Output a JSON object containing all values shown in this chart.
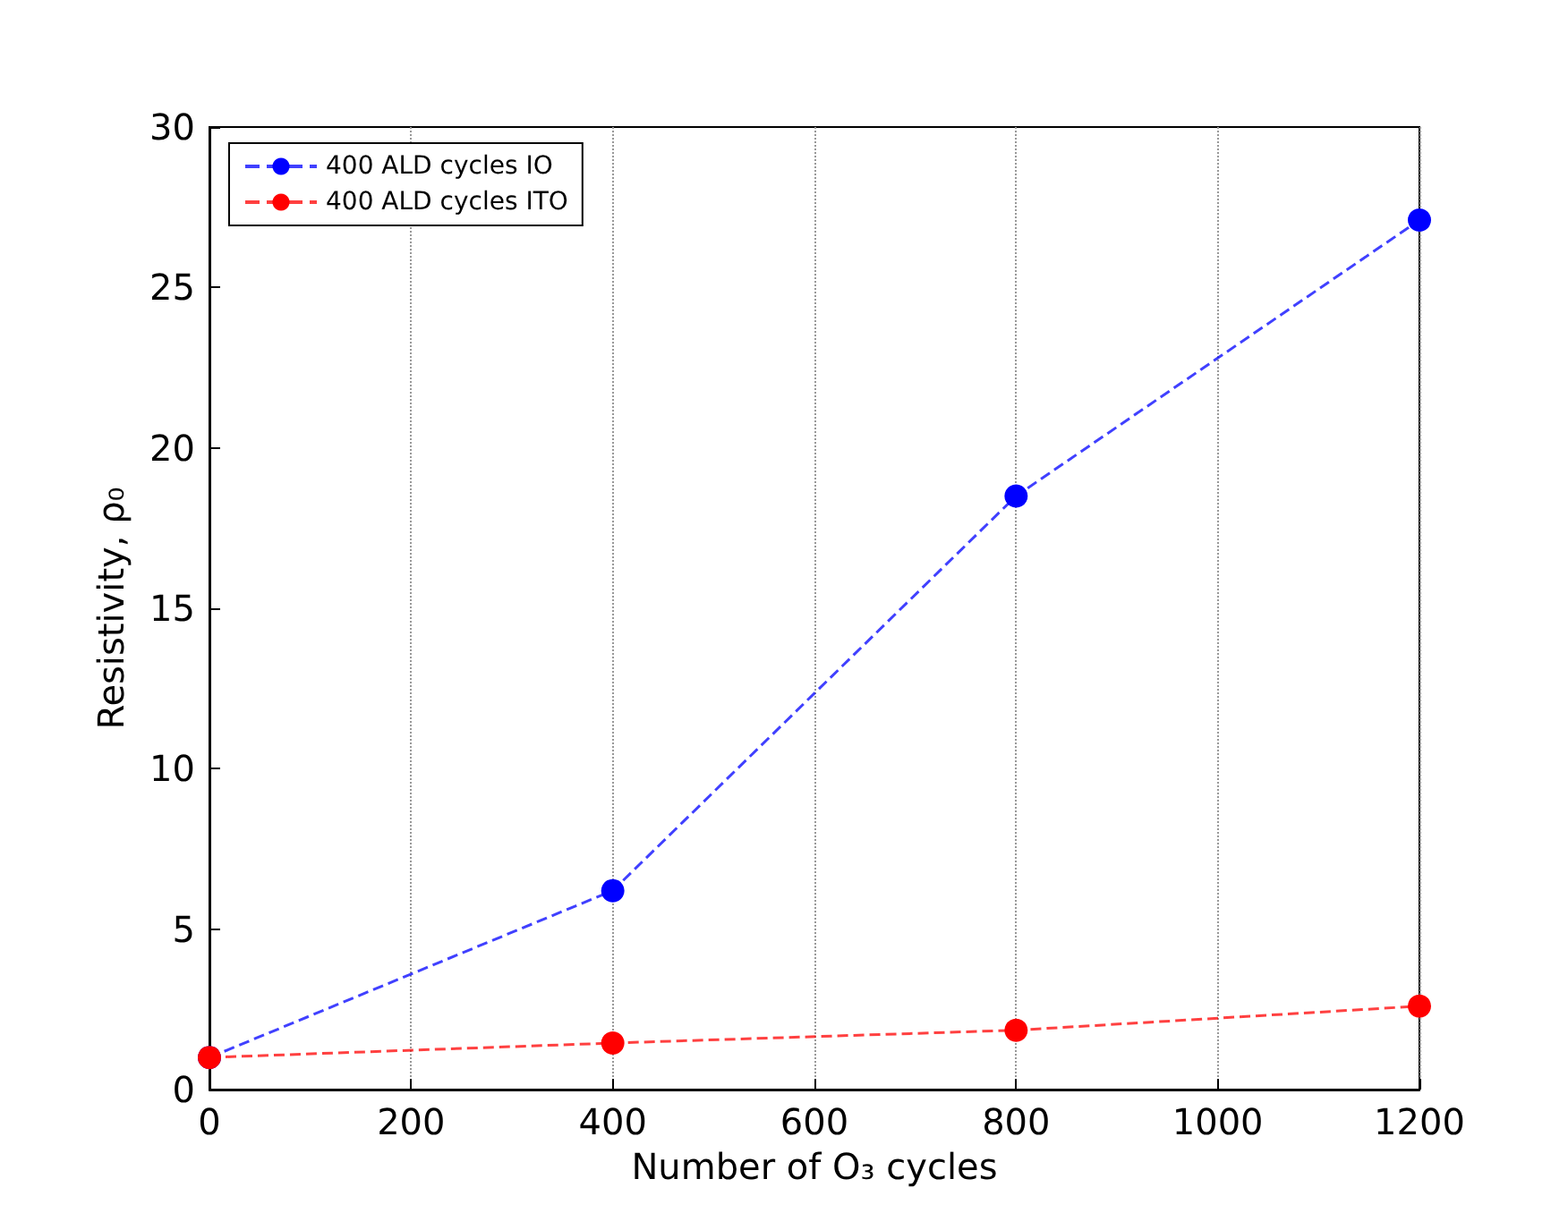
{
  "chart_data": {
    "type": "line",
    "xlabel": "Number of O₃ cycles",
    "ylabel": "Resistivity, ρ₀",
    "x": [
      0,
      400,
      800,
      1200
    ],
    "series": [
      {
        "name": "400 ALD cycles IO",
        "color": "#0000ff",
        "values": [
          1.0,
          6.2,
          18.5,
          27.1
        ]
      },
      {
        "name": "400 ALD cycles ITO",
        "color": "#ff0000",
        "values": [
          1.0,
          1.45,
          1.85,
          2.6
        ]
      }
    ],
    "xlim": [
      0,
      1200
    ],
    "xticks": [
      0,
      200,
      400,
      600,
      800,
      1000,
      1200
    ],
    "ylim": [
      0,
      30
    ],
    "yticks": [
      0,
      5,
      10,
      15,
      20,
      25,
      30
    ],
    "grid": "x",
    "legend": "top left",
    "marker": "circle",
    "line_style": "dashed"
  }
}
